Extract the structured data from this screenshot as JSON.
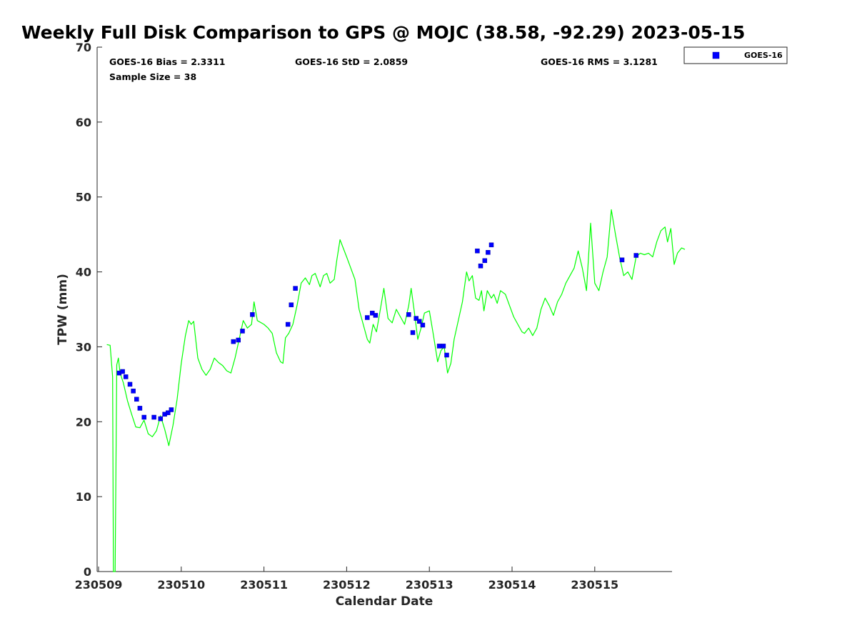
{
  "chart_data": {
    "type": "scatter+line",
    "title": "Weekly Full Disk Comparison to GPS @ MOJC (38.58, -92.29) 2023-05-15",
    "xlabel": "Calendar Date",
    "ylabel": "TPW (mm)",
    "xlim": [
      230509,
      230515.93
    ],
    "ylim": [
      0,
      70
    ],
    "x_ticks": [
      230509,
      230510,
      230511,
      230512,
      230513,
      230514,
      230515
    ],
    "y_ticks": [
      0,
      10,
      20,
      30,
      40,
      50,
      60,
      70
    ],
    "stats": {
      "bias": "GOES-16 Bias = 2.3311",
      "std": "GOES-16 StD = 2.0859",
      "rms": "GOES-16 RMS = 3.1281",
      "sample": "Sample Size = 38"
    },
    "legend": {
      "label": "GOES-16",
      "position": "top-right, outside plot"
    },
    "series": [
      {
        "name": "GPS",
        "style": "line",
        "color": "#00ff00",
        "points": [
          [
            230509.1,
            30.3
          ],
          [
            230509.14,
            30.2
          ],
          [
            230509.17,
            26.0
          ],
          [
            230509.18,
            0.0
          ],
          [
            230509.19,
            0.0
          ],
          [
            230509.2,
            0.0
          ],
          [
            230509.22,
            27.6
          ],
          [
            230509.24,
            28.5
          ],
          [
            230509.26,
            26.5
          ],
          [
            230509.3,
            25.2
          ],
          [
            230509.35,
            22.8
          ],
          [
            230509.4,
            21.0
          ],
          [
            230509.45,
            19.3
          ],
          [
            230509.5,
            19.2
          ],
          [
            230509.55,
            20.2
          ],
          [
            230509.6,
            18.4
          ],
          [
            230509.65,
            18.0
          ],
          [
            230509.7,
            18.8
          ],
          [
            230509.75,
            20.8
          ],
          [
            230509.8,
            19.0
          ],
          [
            230509.85,
            16.8
          ],
          [
            230509.9,
            19.5
          ],
          [
            230509.95,
            23.0
          ],
          [
            230510.0,
            27.8
          ],
          [
            230510.05,
            31.5
          ],
          [
            230510.09,
            33.5
          ],
          [
            230510.12,
            33.0
          ],
          [
            230510.15,
            33.4
          ],
          [
            230510.2,
            28.5
          ],
          [
            230510.25,
            27.0
          ],
          [
            230510.3,
            26.2
          ],
          [
            230510.35,
            27.0
          ],
          [
            230510.4,
            28.5
          ],
          [
            230510.45,
            27.9
          ],
          [
            230510.5,
            27.5
          ],
          [
            230510.55,
            26.8
          ],
          [
            230510.6,
            26.5
          ],
          [
            230510.65,
            28.5
          ],
          [
            230510.7,
            31.0
          ],
          [
            230510.75,
            33.5
          ],
          [
            230510.8,
            32.5
          ],
          [
            230510.85,
            33.0
          ],
          [
            230510.88,
            36.0
          ],
          [
            230510.92,
            33.5
          ],
          [
            230511.0,
            33.0
          ],
          [
            230511.05,
            32.5
          ],
          [
            230511.1,
            31.8
          ],
          [
            230511.15,
            29.2
          ],
          [
            230511.2,
            28.0
          ],
          [
            230511.23,
            27.8
          ],
          [
            230511.26,
            31.2
          ],
          [
            230511.3,
            31.8
          ],
          [
            230511.35,
            33.0
          ],
          [
            230511.4,
            35.5
          ],
          [
            230511.45,
            38.5
          ],
          [
            230511.5,
            39.2
          ],
          [
            230511.55,
            38.3
          ],
          [
            230511.58,
            39.5
          ],
          [
            230511.62,
            39.8
          ],
          [
            230511.68,
            38.0
          ],
          [
            230511.72,
            39.5
          ],
          [
            230511.76,
            39.8
          ],
          [
            230511.8,
            38.5
          ],
          [
            230511.85,
            39.0
          ],
          [
            230511.88,
            41.5
          ],
          [
            230511.92,
            44.3
          ],
          [
            230512.0,
            42.0
          ],
          [
            230512.05,
            40.5
          ],
          [
            230512.1,
            39.0
          ],
          [
            230512.15,
            35.0
          ],
          [
            230512.2,
            33.0
          ],
          [
            230512.25,
            31.0
          ],
          [
            230512.28,
            30.5
          ],
          [
            230512.32,
            33.0
          ],
          [
            230512.36,
            32.0
          ],
          [
            230512.4,
            34.5
          ],
          [
            230512.45,
            37.8
          ],
          [
            230512.5,
            33.8
          ],
          [
            230512.55,
            33.2
          ],
          [
            230512.6,
            35.0
          ],
          [
            230512.65,
            34.0
          ],
          [
            230512.7,
            33.0
          ],
          [
            230512.75,
            35.5
          ],
          [
            230512.78,
            37.8
          ],
          [
            230512.82,
            34.5
          ],
          [
            230512.86,
            31.0
          ],
          [
            230512.9,
            32.5
          ],
          [
            230512.94,
            34.5
          ],
          [
            230513.0,
            34.8
          ],
          [
            230513.05,
            31.5
          ],
          [
            230513.1,
            28.0
          ],
          [
            230513.14,
            29.5
          ],
          [
            230513.18,
            30.0
          ],
          [
            230513.22,
            26.5
          ],
          [
            230513.26,
            27.8
          ],
          [
            230513.3,
            31.0
          ],
          [
            230513.35,
            33.5
          ],
          [
            230513.4,
            36.0
          ],
          [
            230513.45,
            40.0
          ],
          [
            230513.48,
            38.8
          ],
          [
            230513.52,
            39.5
          ],
          [
            230513.56,
            36.5
          ],
          [
            230513.6,
            36.2
          ],
          [
            230513.63,
            37.5
          ],
          [
            230513.66,
            34.8
          ],
          [
            230513.7,
            37.5
          ],
          [
            230513.75,
            36.5
          ],
          [
            230513.78,
            37.0
          ],
          [
            230513.82,
            35.8
          ],
          [
            230513.86,
            37.5
          ],
          [
            230513.92,
            37.0
          ],
          [
            230513.97,
            35.5
          ],
          [
            230514.02,
            34.0
          ],
          [
            230514.07,
            33.0
          ],
          [
            230514.12,
            32.0
          ],
          [
            230514.15,
            31.8
          ],
          [
            230514.2,
            32.5
          ],
          [
            230514.25,
            31.5
          ],
          [
            230514.3,
            32.5
          ],
          [
            230514.35,
            35.0
          ],
          [
            230514.4,
            36.5
          ],
          [
            230514.45,
            35.5
          ],
          [
            230514.5,
            34.2
          ],
          [
            230514.55,
            36.0
          ],
          [
            230514.6,
            37.0
          ],
          [
            230514.65,
            38.5
          ],
          [
            230514.7,
            39.5
          ],
          [
            230514.75,
            40.5
          ],
          [
            230514.8,
            42.8
          ],
          [
            230514.85,
            40.5
          ],
          [
            230514.9,
            37.5
          ],
          [
            230514.95,
            46.5
          ],
          [
            230515.0,
            38.5
          ],
          [
            230515.05,
            37.5
          ],
          [
            230515.1,
            40.0
          ],
          [
            230515.15,
            42.0
          ],
          [
            230515.2,
            48.3
          ],
          [
            230515.25,
            45.0
          ],
          [
            230515.3,
            42.0
          ],
          [
            230515.35,
            39.5
          ],
          [
            230515.4,
            40.0
          ],
          [
            230515.45,
            39.0
          ],
          [
            230515.5,
            42.0
          ],
          [
            230515.55,
            42.5
          ],
          [
            230515.6,
            42.3
          ],
          [
            230515.65,
            42.5
          ],
          [
            230515.7,
            42.0
          ],
          [
            230515.75,
            44.0
          ],
          [
            230515.8,
            45.5
          ],
          [
            230515.85,
            46.0
          ],
          [
            230515.88,
            44.0
          ],
          [
            230515.92,
            45.8
          ],
          [
            230515.96,
            41.0
          ],
          [
            230516.0,
            42.5
          ],
          [
            230516.05,
            43.2
          ],
          [
            230516.09,
            43.0
          ]
        ]
      },
      {
        "name": "GOES-16",
        "style": "marker",
        "color": "#0000ff",
        "points": [
          [
            230509.25,
            26.5
          ],
          [
            230509.29,
            26.7
          ],
          [
            230509.33,
            26.0
          ],
          [
            230509.38,
            25.0
          ],
          [
            230509.42,
            24.1
          ],
          [
            230509.46,
            23.0
          ],
          [
            230509.5,
            21.8
          ],
          [
            230509.55,
            20.6
          ],
          [
            230509.67,
            20.6
          ],
          [
            230509.75,
            20.4
          ],
          [
            230509.8,
            21.0
          ],
          [
            230509.84,
            21.2
          ],
          [
            230509.88,
            21.6
          ],
          [
            230510.63,
            30.7
          ],
          [
            230510.69,
            30.9
          ],
          [
            230510.74,
            32.1
          ],
          [
            230510.86,
            34.3
          ],
          [
            230511.29,
            33.0
          ],
          [
            230511.33,
            35.6
          ],
          [
            230511.38,
            37.8
          ],
          [
            230512.25,
            33.9
          ],
          [
            230512.31,
            34.5
          ],
          [
            230512.35,
            34.2
          ],
          [
            230512.75,
            34.3
          ],
          [
            230512.8,
            31.9
          ],
          [
            230512.84,
            33.8
          ],
          [
            230512.88,
            33.4
          ],
          [
            230512.92,
            32.9
          ],
          [
            230513.12,
            30.1
          ],
          [
            230513.17,
            30.1
          ],
          [
            230513.21,
            28.9
          ],
          [
            230513.58,
            42.8
          ],
          [
            230513.62,
            40.8
          ],
          [
            230513.67,
            41.5
          ],
          [
            230513.71,
            42.6
          ],
          [
            230513.75,
            43.6
          ],
          [
            230515.33,
            41.6
          ],
          [
            230515.5,
            42.2
          ]
        ]
      }
    ]
  }
}
